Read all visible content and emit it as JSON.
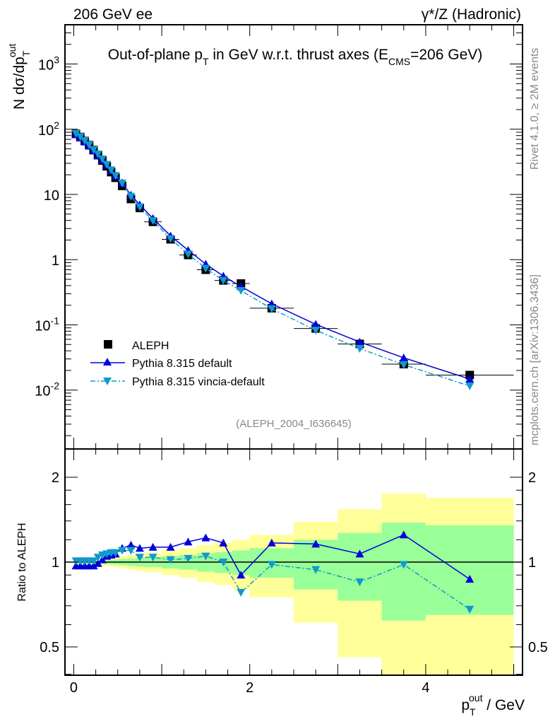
{
  "header": {
    "left": "206 GeV ee",
    "right": "γ*/Z (Hadronic)"
  },
  "side_text": {
    "top": "Rivet 4.1.0, ≥ 2M events",
    "bottom": "mcplots.cern.ch [arXiv:1306.3436]"
  },
  "analysis_id": "(ALEPH_2004_I636645)",
  "chart_data": {
    "type": "line",
    "title_parts": [
      "Out-of-plane p",
      "T",
      " in GeV w.r.t. thrust axes (E",
      "CMS",
      "=206 GeV)"
    ],
    "ylabel_parts": [
      "N  dσ/dp",
      "T",
      "out"
    ],
    "xlabel_parts": [
      "p",
      "T",
      "out",
      " / GeV"
    ],
    "ratio_ylabel": "Ratio to ALEPH",
    "xlim": [
      -0.1,
      5.1
    ],
    "ylim": [
      0.00125,
      4000
    ],
    "yscale": "log",
    "ratio_ylim": [
      0.397,
      2.52
    ],
    "x_tick_labels": [
      "0",
      "2",
      "4"
    ],
    "y_tick_labels": [
      {
        "base": "10",
        "exp": "-2",
        "value": 0.01
      },
      {
        "base": "10",
        "exp": "-1",
        "value": 0.1
      },
      {
        "base": "1",
        "exp": "",
        "value": 1
      },
      {
        "base": "10",
        "exp": "",
        "value": 10
      },
      {
        "base": "10",
        "exp": "2",
        "value": 100
      },
      {
        "base": "10",
        "exp": "3",
        "value": 1000
      }
    ],
    "ratio_tick_labels": [
      "0.5",
      "1",
      "2"
    ],
    "bin_edges": [
      0,
      0.05,
      0.1,
      0.15,
      0.2,
      0.25,
      0.3,
      0.35,
      0.4,
      0.45,
      0.5,
      0.6,
      0.7,
      0.8,
      1.0,
      1.2,
      1.4,
      1.6,
      1.8,
      2.0,
      2.5,
      3.0,
      3.5,
      4.0,
      5.0
    ],
    "x": [
      0.025,
      0.075,
      0.125,
      0.175,
      0.225,
      0.275,
      0.325,
      0.375,
      0.425,
      0.475,
      0.55,
      0.65,
      0.75,
      0.9,
      1.1,
      1.3,
      1.5,
      1.7,
      1.9,
      2.25,
      2.75,
      3.25,
      3.75,
      4.5
    ],
    "legend": [
      "ALEPH",
      "Pythia 8.315 default",
      "Pythia 8.315 vincia-default"
    ],
    "legend_position": "lower-left",
    "data": {
      "name": "ALEPH",
      "values": [
        85,
        76,
        66,
        57,
        48,
        40,
        33,
        27,
        22,
        18,
        13.5,
        8.5,
        6.2,
        3.8,
        2.05,
        1.18,
        0.7,
        0.48,
        0.43,
        0.18,
        0.088,
        0.051,
        0.025,
        0.017
      ],
      "total_rel_err": [
        0.02,
        0.02,
        0.02,
        0.02,
        0.025,
        0.025,
        0.03,
        0.03,
        0.035,
        0.04,
        0.05,
        0.06,
        0.07,
        0.08,
        0.1,
        0.12,
        0.15,
        0.17,
        0.2,
        0.25,
        0.39,
        0.54,
        0.75,
        0.69
      ],
      "stat_rel_err": [
        0.01,
        0.01,
        0.01,
        0.01,
        0.012,
        0.012,
        0.015,
        0.015,
        0.018,
        0.02,
        0.025,
        0.03,
        0.035,
        0.04,
        0.05,
        0.06,
        0.075,
        0.085,
        0.1,
        0.12,
        0.2,
        0.27,
        0.38,
        0.35
      ]
    },
    "series": [
      {
        "name": "Pythia 8.315 default",
        "color": "#0000dd",
        "marker": "triangle-up",
        "style": "solid",
        "ratio": [
          0.97,
          0.97,
          0.97,
          0.97,
          0.97,
          0.99,
          1.02,
          1.05,
          1.06,
          1.07,
          1.12,
          1.15,
          1.12,
          1.13,
          1.13,
          1.18,
          1.22,
          1.17,
          0.9,
          1.17,
          1.16,
          1.07,
          1.25,
          0.87
        ]
      },
      {
        "name": "Pythia 8.315 vincia-default",
        "color": "#1199cc",
        "marker": "triangle-down",
        "style": "dashdot",
        "ratio": [
          1.01,
          1.01,
          1.01,
          1.01,
          1.01,
          1.04,
          1.06,
          1.07,
          1.08,
          1.08,
          1.1,
          1.1,
          1.04,
          1.04,
          1.02,
          1.03,
          1.05,
          1.0,
          0.78,
          0.98,
          0.94,
          0.85,
          0.98,
          0.68
        ]
      }
    ],
    "band_colors": {
      "total": "#ffff99",
      "stat": "#99ff99"
    }
  }
}
